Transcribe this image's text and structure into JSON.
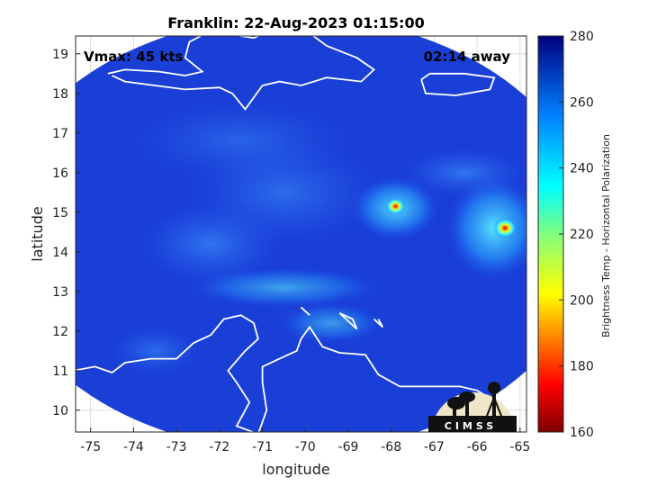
{
  "title": "Franklin: 22-Aug-2023 01:15:00",
  "vmax_label": "Vmax: 45 kts",
  "time_away_label": "02:14 away",
  "logo_text": "CIMSS",
  "axes": {
    "xlabel": "longitude",
    "ylabel": "latitude",
    "xlim": [
      -75.35,
      -64.85
    ],
    "ylim": [
      9.45,
      19.45
    ],
    "xticks": [
      -75,
      -74,
      -73,
      -72,
      -71,
      -70,
      -69,
      -68,
      -67,
      -66,
      -65
    ],
    "yticks": [
      10,
      11,
      12,
      13,
      14,
      15,
      16,
      17,
      18,
      19
    ],
    "grid": true
  },
  "colorbar": {
    "label": "Brightness Temp - Horizontal Polarization",
    "range": [
      160,
      280
    ],
    "ticks": [
      160,
      180,
      200,
      220,
      240,
      260,
      280
    ],
    "colormap": "jet"
  },
  "colors": {
    "background_field": "#1a3fd6",
    "coastline": "#ffffff"
  }
}
